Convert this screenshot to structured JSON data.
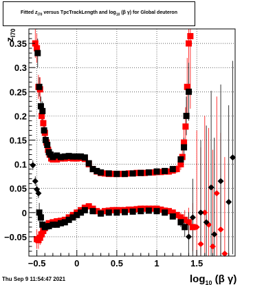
{
  "title": {
    "prefix": "Fitted ",
    "z_symbol": "z",
    "z_subscript": "I70",
    "middle": " versus TpcTrackLength and log",
    "log_subscript": "10",
    "suffix": " (β γ) for Global deuteron"
  },
  "datestamp": "Thu Sep  9 11:54:47 2021",
  "colors": {
    "red": "#ff0000",
    "black": "#000000",
    "grid": "#000000"
  },
  "chart_data": {
    "type": "scatter",
    "title": "Fitted zI70 versus TpcTrackLength and log10(β γ) for Global deuteron",
    "xlabel": "log10 (β γ)",
    "xlabel_main": "log",
    "xlabel_sub": "10",
    "xlabel_rest": " (β γ)",
    "ylabel": "zI70",
    "ylabel_main": "z",
    "ylabel_sub": "I70",
    "xlim": [
      -0.6,
      1.98
    ],
    "ylim": [
      -0.09,
      0.38
    ],
    "grid": true,
    "x_ticks": [
      -0.5,
      0,
      0.5,
      1,
      1.5
    ],
    "x_tick_labels": [
      "−0.5",
      "0",
      "0.5",
      "1",
      "1.5"
    ],
    "y_ticks": [
      -0.05,
      0,
      0.05,
      0.1,
      0.15,
      0.2,
      0.25,
      0.3,
      0.35
    ],
    "y_tick_labels": [
      "−0.05",
      "0",
      "0.05",
      "0.1",
      "0.15",
      "0.2",
      "0.25",
      "0.3",
      "0.35"
    ],
    "series": [
      {
        "color": "#ff0000",
        "marker": "square",
        "x": [
          -0.52,
          -0.5,
          -0.48,
          -0.46,
          -0.44,
          -0.42,
          -0.4,
          -0.38,
          -0.36,
          -0.34,
          -0.32,
          -0.3,
          -0.25,
          -0.2,
          -0.15,
          -0.1,
          -0.05,
          0.0,
          0.05,
          0.1,
          0.15,
          0.2,
          0.25,
          0.3,
          0.35,
          0.4,
          0.45,
          0.5,
          0.55,
          0.6,
          0.65,
          0.7,
          0.75,
          0.8,
          0.85,
          0.9,
          0.95,
          1.0,
          1.05,
          1.1,
          1.15,
          1.2,
          1.25,
          1.3,
          1.32,
          1.34,
          1.36,
          1.38,
          1.4,
          1.42
        ],
        "y": [
          0.35,
          0.34,
          0.26,
          0.255,
          0.2,
          0.185,
          0.165,
          0.145,
          0.13,
          0.12,
          0.112,
          0.11,
          0.11,
          0.112,
          0.112,
          0.113,
          0.112,
          0.112,
          0.113,
          0.111,
          0.1,
          0.09,
          0.085,
          0.082,
          0.081,
          0.08,
          0.08,
          0.08,
          0.08,
          0.08,
          0.081,
          0.081,
          0.082,
          0.082,
          0.082,
          0.083,
          0.083,
          0.084,
          0.084,
          0.085,
          0.085,
          0.087,
          0.09,
          0.1,
          0.115,
          0.145,
          0.178,
          0.26,
          0.35,
          0.365
        ],
        "yerr": [
          0.03,
          0.03,
          0.025,
          0.025,
          0.02,
          0.02,
          0.015,
          0.012,
          0.01,
          0.008,
          0.006,
          0.005,
          0.004,
          0.004,
          0.003,
          0.003,
          0.003,
          0.003,
          0.003,
          0.003,
          0.003,
          0.003,
          0.002,
          0.002,
          0.002,
          0.002,
          0.002,
          0.002,
          0.002,
          0.002,
          0.002,
          0.002,
          0.002,
          0.002,
          0.002,
          0.002,
          0.002,
          0.002,
          0.003,
          0.003,
          0.004,
          0.005,
          0.008,
          0.012,
          0.02,
          0.03,
          0.04,
          0.06,
          0.1,
          0.15
        ]
      },
      {
        "color": "#ff0000",
        "marker": "square",
        "x": [
          -0.5,
          -0.48,
          -0.46,
          -0.44,
          -0.42,
          -0.4,
          -0.38,
          -0.35,
          -0.3,
          -0.25,
          -0.2,
          -0.15,
          -0.1,
          -0.05,
          0.0,
          0.05,
          0.1,
          0.15,
          0.2,
          0.25,
          0.3,
          0.35,
          0.4,
          0.45,
          0.5,
          0.55,
          0.6,
          0.65,
          0.7,
          0.75,
          0.8,
          0.85,
          0.9,
          0.95,
          1.0,
          1.05,
          1.1,
          1.15,
          1.2,
          1.25,
          1.3,
          1.35,
          1.4,
          1.45
        ],
        "y": [
          -0.055,
          -0.057,
          -0.052,
          -0.045,
          -0.038,
          -0.032,
          -0.027,
          -0.022,
          -0.02,
          -0.018,
          -0.017,
          -0.015,
          -0.01,
          -0.005,
          0.0,
          0.005,
          0.01,
          0.013,
          0.008,
          0.003,
          0.0,
          0.003,
          0.004,
          0.005,
          0.005,
          0.005,
          0.005,
          0.006,
          0.006,
          0.007,
          0.008,
          0.008,
          0.008,
          0.008,
          0.008,
          0.006,
          0.004,
          0.003,
          0.0,
          -0.005,
          -0.01,
          -0.015,
          -0.02,
          -0.03
        ],
        "yerr": [
          0.02,
          0.018,
          0.015,
          0.012,
          0.01,
          0.008,
          0.007,
          0.006,
          0.005,
          0.004,
          0.004,
          0.003,
          0.003,
          0.003,
          0.003,
          0.003,
          0.003,
          0.003,
          0.003,
          0.003,
          0.003,
          0.002,
          0.002,
          0.002,
          0.002,
          0.002,
          0.002,
          0.002,
          0.002,
          0.002,
          0.002,
          0.002,
          0.002,
          0.002,
          0.002,
          0.003,
          0.003,
          0.004,
          0.005,
          0.006,
          0.01,
          0.02,
          0.03,
          0.05
        ]
      },
      {
        "color": "#ff0000",
        "marker": "diamond",
        "x": [
          1.5,
          1.55,
          1.6,
          1.65,
          1.7,
          1.75,
          1.8,
          1.85
        ],
        "y": [
          -0.03,
          -0.065,
          0.0,
          -0.025,
          -0.07,
          0.04,
          -0.035,
          -0.085
        ],
        "yerr": [
          0.2,
          0.2,
          0.2,
          0.2,
          0.2,
          0.2,
          0.2,
          0.2
        ]
      },
      {
        "color": "#000000",
        "marker": "square",
        "x": [
          -0.49,
          -0.47,
          -0.45,
          -0.43,
          -0.41,
          -0.39,
          -0.37,
          -0.35,
          -0.33,
          -0.3,
          -0.25,
          -0.2,
          -0.15,
          -0.1,
          -0.05,
          0.0,
          0.05,
          0.1,
          0.15,
          0.2,
          0.25,
          0.3,
          0.4,
          0.5,
          0.6,
          0.7,
          0.8,
          0.9,
          1.0,
          1.1,
          1.2,
          1.3,
          1.34,
          1.37,
          1.4
        ],
        "y": [
          0.33,
          0.26,
          0.22,
          0.21,
          0.17,
          0.15,
          0.14,
          0.125,
          0.12,
          0.115,
          0.118,
          0.115,
          0.116,
          0.117,
          0.116,
          0.116,
          0.116,
          0.114,
          0.102,
          0.09,
          0.086,
          0.083,
          0.081,
          0.08,
          0.08,
          0.081,
          0.082,
          0.083,
          0.085,
          0.086,
          0.09,
          0.11,
          0.135,
          0.2,
          0.25
        ],
        "yerr": [
          0.03,
          0.02,
          0.02,
          0.02,
          0.015,
          0.01,
          0.01,
          0.008,
          0.006,
          0.004,
          0.004,
          0.003,
          0.003,
          0.003,
          0.003,
          0.003,
          0.003,
          0.003,
          0.003,
          0.003,
          0.002,
          0.002,
          0.002,
          0.002,
          0.002,
          0.002,
          0.002,
          0.002,
          0.002,
          0.003,
          0.004,
          0.01,
          0.02,
          0.04,
          0.06
        ]
      },
      {
        "color": "#000000",
        "marker": "square",
        "x": [
          -0.47,
          -0.45,
          -0.43,
          -0.4,
          -0.35,
          -0.3,
          -0.25,
          -0.2,
          -0.15,
          -0.1,
          -0.05,
          0.0,
          0.05,
          0.1,
          0.2,
          0.3,
          0.4,
          0.5,
          0.6,
          0.7,
          0.8,
          0.9,
          1.0,
          1.1,
          1.2,
          1.3,
          1.35
        ],
        "y": [
          0.0,
          -0.01,
          -0.025,
          -0.03,
          -0.028,
          -0.025,
          -0.025,
          -0.022,
          -0.02,
          -0.015,
          -0.01,
          -0.005,
          0.0,
          0.005,
          0.003,
          -0.002,
          0.0,
          0.0,
          0.001,
          0.002,
          0.003,
          0.004,
          0.003,
          0.0,
          -0.008,
          -0.02,
          -0.03
        ],
        "yerr": [
          0.02,
          0.015,
          0.012,
          0.01,
          0.008,
          0.006,
          0.005,
          0.004,
          0.004,
          0.003,
          0.003,
          0.003,
          0.003,
          0.003,
          0.003,
          0.002,
          0.002,
          0.002,
          0.002,
          0.002,
          0.002,
          0.002,
          0.003,
          0.003,
          0.005,
          0.01,
          0.02
        ]
      },
      {
        "color": "#000000",
        "marker": "diamond",
        "x": [
          -0.55,
          -0.52,
          -0.5,
          -0.48,
          1.4,
          1.45,
          1.55,
          1.62,
          1.68,
          1.72,
          1.8,
          1.9,
          1.95
        ],
        "y": [
          0.098,
          0.065,
          0.048,
          0.04,
          -0.05,
          -0.01,
          0.0,
          -0.02,
          0.052,
          -0.045,
          0.065,
          0.022,
          0.114
        ],
        "yerr": [
          0.01,
          0.01,
          0.01,
          0.01,
          0.05,
          0.08,
          0.15,
          0.2,
          0.2,
          0.2,
          0.2,
          0.2,
          0.2
        ]
      }
    ]
  }
}
